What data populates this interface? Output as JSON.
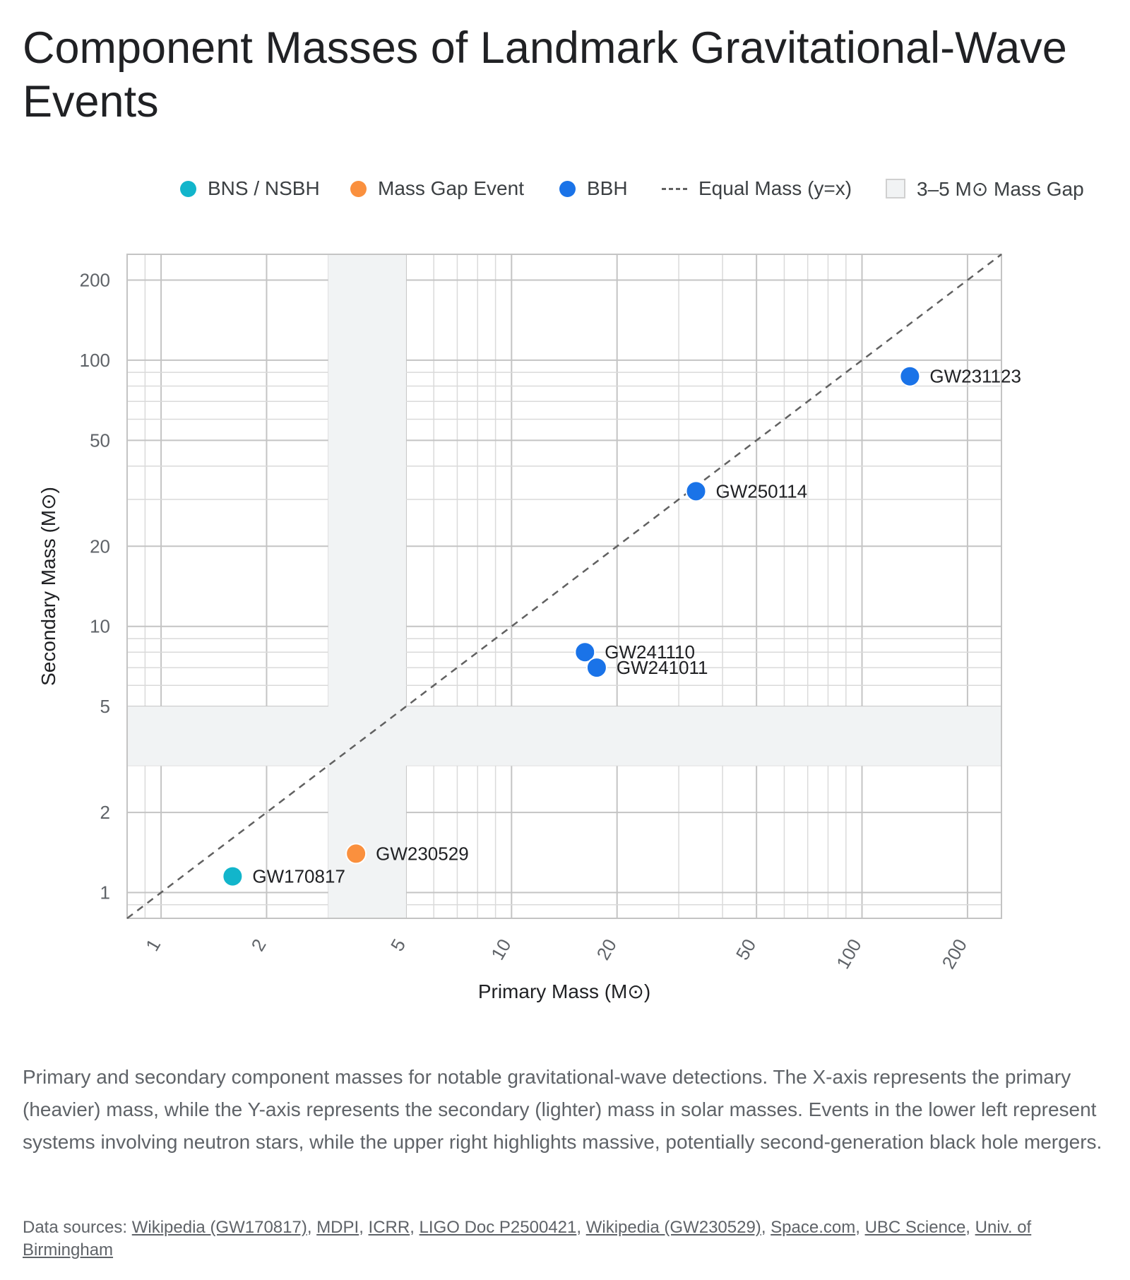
{
  "title": "Component Masses of Landmark Gravitational-Wave Events",
  "legend": [
    {
      "label": "BNS / NSBH",
      "marker": "dot",
      "color": "#12b5cb"
    },
    {
      "label": "Mass Gap Event",
      "marker": "dot",
      "color": "#fa903e"
    },
    {
      "label": "BBH",
      "marker": "dot",
      "color": "#1a73e8"
    },
    {
      "label": "Equal Mass (y=x)",
      "marker": "dash",
      "color": "#616161"
    },
    {
      "label": "3–5 M⊙ Mass Gap",
      "marker": "box",
      "color": "#f1f3f4"
    }
  ],
  "chart_data": {
    "type": "scatter",
    "xlabel": "Primary Mass (M⊙)",
    "ylabel": "Secondary Mass (M⊙)",
    "x_scale": "log",
    "y_scale": "log",
    "xlim": [
      0.8,
      250
    ],
    "ylim": [
      0.8,
      250
    ],
    "x_ticks": [
      1,
      2,
      5,
      10,
      20,
      50,
      100,
      200
    ],
    "y_ticks": [
      1,
      2,
      5,
      10,
      20,
      50,
      100,
      200
    ],
    "grid": true,
    "legend_position": "top",
    "mass_gap": [
      3,
      5
    ],
    "reference_line": "y=x",
    "series": [
      {
        "name": "BNS / NSBH",
        "color": "#12b5cb",
        "points": [
          {
            "label": "GW170817",
            "x": 1.6,
            "y": 1.15
          }
        ]
      },
      {
        "name": "Mass Gap Event",
        "color": "#fa903e",
        "points": [
          {
            "label": "GW230529",
            "x": 3.6,
            "y": 1.4
          }
        ]
      },
      {
        "name": "BBH",
        "color": "#1a73e8",
        "points": [
          {
            "label": "GW241110",
            "x": 16.2,
            "y": 8.0
          },
          {
            "label": "GW241011",
            "x": 17.5,
            "y": 7.0
          },
          {
            "label": "GW250114",
            "x": 33.6,
            "y": 32.2
          },
          {
            "label": "GW231123",
            "x": 137,
            "y": 87
          }
        ]
      }
    ]
  },
  "caption": "Primary and secondary component masses for notable gravitational-wave detections. The X-axis represents the primary (heavier) mass, while the Y-axis represents the secondary (lighter) mass in solar masses. Events in the lower left represent systems involving neutron stars, while the upper right highlights massive, potentially second-generation black hole mergers.",
  "sources": {
    "prefix": "Data sources: ",
    "links": [
      "Wikipedia (GW170817)",
      "MDPI",
      "ICRR",
      "LIGO Doc P2500421",
      "Wikipedia (GW230529)",
      "Space.com",
      "UBC Science",
      "Univ. of Birmingham"
    ]
  }
}
